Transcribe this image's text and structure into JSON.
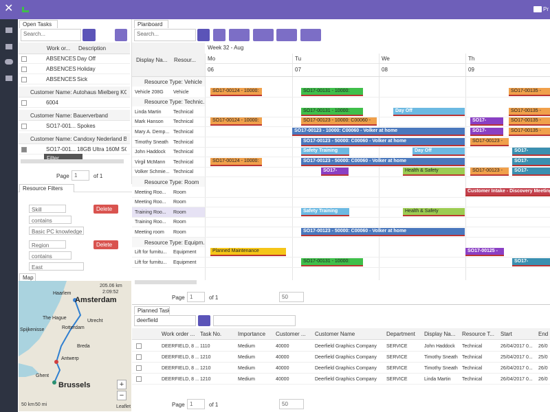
{
  "topbar": {
    "user": "Pr"
  },
  "open_tasks": {
    "tab": "Open Tasks",
    "search": "Search...",
    "columns": [
      "Work or...",
      "Description"
    ],
    "rows": [
      {
        "cells": [
          "ABSENCES",
          "Day Off"
        ]
      },
      {
        "cells": [
          "ABSENCES",
          "Holiday"
        ]
      },
      {
        "cells": [
          "ABSENCES",
          "Sick"
        ]
      },
      {
        "group": "Customer Name: Autohaus Mielberg KG"
      },
      {
        "cells": [
          "6004"
        ]
      },
      {
        "group": "Customer Name: Bauerverband"
      },
      {
        "cells": [
          "SO17-001...",
          "Spokes"
        ]
      },
      {
        "group": "Customer Name: Candoxy Nederland B..."
      },
      {
        "cells": [
          "SO17-001...",
          "18GB Ultra 160M SCS..."
        ]
      }
    ],
    "tooltip": "Filter",
    "pager": {
      "label": "Page",
      "page": "1",
      "of": "of 1"
    }
  },
  "resource_filters": {
    "title": "Resource Filters",
    "delete": "Delete",
    "filters": [
      {
        "field": "Skill",
        "op": "contains",
        "value": "Basic PC knowledge"
      },
      {
        "field": "Region",
        "op": "contains",
        "value": "East"
      }
    ]
  },
  "map": {
    "title": "Map",
    "distance": "205.06 km",
    "duration": "2:09:52",
    "scale_km": "50 km",
    "scale_mi": "50 mi",
    "attribution": "Leaflet",
    "zoom_in": "+",
    "zoom_out": "−",
    "cities": [
      "Amsterdam",
      "Haarlem",
      "The Hague",
      "Utrecht",
      "Rotterdam",
      "Breda",
      "Antwerp",
      "Ghent",
      "Brussels",
      "Spijkenisse"
    ]
  },
  "planboard": {
    "tab": "Planboard",
    "search": "Search...",
    "week": "Week 32 - Aug",
    "columns": [
      "Display Na...",
      "Resour..."
    ],
    "days": [
      {
        "name": "Mo",
        "num": "06"
      },
      {
        "name": "Tu",
        "num": "07"
      },
      {
        "name": "We",
        "num": "08"
      },
      {
        "name": "Th",
        "num": "09"
      }
    ],
    "rows": [
      {
        "group": "Resource Type: Vehicle"
      },
      {
        "name": "Vehicle 208G",
        "type": "Vehicle",
        "bars": [
          {
            "label": "SO17-00124 - 10000:",
            "color": "#f0a04b"
          },
          {
            "label": "SO17-00131 - 10000:",
            "color": "#3fbf4a"
          },
          {
            "label": "SO17-00135 -",
            "color": "#f0a04b"
          }
        ]
      },
      {
        "group": "Resource Type: Technic..."
      },
      {
        "name": "Linda Martin",
        "type": "Technical",
        "bars": [
          {
            "label": "SO17-00131 - 10000:",
            "color": "#3fbf4a"
          },
          {
            "label": "Day Off",
            "color": "#6cb9e2"
          },
          {
            "label": "SO17-00135 -",
            "color": "#f0a04b"
          }
        ]
      },
      {
        "name": "Mark Hanson",
        "type": "Technical",
        "bars": [
          {
            "label": "SO17-00124 - 10000:",
            "color": "#f0a04b"
          },
          {
            "label": "SO17-00123 - 10000: C00060 -",
            "color": "#f0a04b"
          },
          {
            "label": "SO17-",
            "color": "#8a3fc4"
          },
          {
            "label": "SO17-00135 -",
            "color": "#f0a04b"
          }
        ]
      },
      {
        "name": "Mary A. Demp...",
        "type": "Technical",
        "bars": [
          {
            "label": "SO17-00123 - 10000: C00060 - Volker at home",
            "color": "#4a78bd"
          },
          {
            "label": "SO17-",
            "color": "#8a3fc4"
          },
          {
            "label": "SO17-00135 -",
            "color": "#f0a04b"
          }
        ]
      },
      {
        "name": "Timothy Sneath",
        "type": "Technical",
        "bars": [
          {
            "label": "SO17-00123 - 50000: C00060 - Volker at home",
            "color": "#4a78bd"
          },
          {
            "label": "SO17-00123 -",
            "color": "#f0a04b"
          }
        ]
      },
      {
        "name": "John Haddock",
        "type": "Technical",
        "bars": [
          {
            "label": "Safety Training",
            "color": "#6cb9e2"
          },
          {
            "label": "Day Off",
            "color": "#6cb9e2"
          },
          {
            "label": "SO17-",
            "color": "#3a8fb0"
          }
        ]
      },
      {
        "name": "Virgil McMann",
        "type": "Technical",
        "bars": [
          {
            "label": "SO17-00124 - 10000:",
            "color": "#f0a04b"
          },
          {
            "label": "SO17-00123 - 50000: C00060 - Volker at home",
            "color": "#4a78bd"
          },
          {
            "label": "SO17-",
            "color": "#3a8fb0"
          }
        ]
      },
      {
        "name": "Volker Schmie...",
        "type": "Technical",
        "bars": [
          {
            "label": "SO17-",
            "color": "#8a3fc4"
          },
          {
            "label": "Health & Safety",
            "color": "#9ccc52"
          },
          {
            "label": "SO17-00123 -",
            "color": "#f0a04b"
          },
          {
            "label": "SO17-",
            "color": "#3a8fb0"
          }
        ]
      },
      {
        "group": "Resource Type: Room"
      },
      {
        "name": "Meeting Roo...",
        "type": "Room",
        "bars": [
          {
            "label": "Customer Intake - Discovery Meeting",
            "color": "#c2404c"
          }
        ]
      },
      {
        "name": "Meeting Roo...",
        "type": "Room",
        "bars": []
      },
      {
        "name": "Training Roo...",
        "type": "Room",
        "bars": [
          {
            "label": "Safety Training",
            "color": "#6cb9e2"
          },
          {
            "label": "Health & Safety",
            "color": "#9ccc52"
          }
        ]
      },
      {
        "name": "Training Roo...",
        "type": "Room",
        "bars": []
      },
      {
        "name": "Meeting room",
        "type": "Room",
        "bars": [
          {
            "label": "SO17-00123 - 50000: C00060 - Volker at home",
            "color": "#4a78bd"
          }
        ]
      },
      {
        "group": "Resource Type: Equipm..."
      },
      {
        "name": "Lift for furnitu...",
        "type": "Equipment",
        "bars": [
          {
            "label": "Planned Maintenance",
            "color": "#f5c518"
          },
          {
            "label": "SO17-00125 -",
            "color": "#8a3fc4"
          }
        ]
      },
      {
        "name": "Lift for furnitu...",
        "type": "Equipment",
        "bars": [
          {
            "label": "SO17-00131 - 10000:",
            "color": "#3fbf4a"
          },
          {
            "label": "SO17-",
            "color": "#3a8fb0"
          }
        ]
      }
    ],
    "pager": {
      "label": "Page",
      "page": "1",
      "of": "of 1",
      "size": "50"
    }
  },
  "planned_tasks": {
    "tab": "Planned Tasks",
    "search": "deerfield",
    "columns": [
      "Work order ...",
      "Task No.",
      "Importance",
      "Customer ...",
      "Customer Name",
      "Department",
      "Display Na...",
      "Resource T...",
      "Start",
      "End"
    ],
    "rows": [
      [
        "DEERFIELD, 8 ...",
        "1110",
        "Medium",
        "40000",
        "Deerfield Graphics Company",
        "SERVICE",
        "John Haddock",
        "Technical",
        "26/04/2017 0...",
        "26/0"
      ],
      [
        "DEERFIELD, 8 ...",
        "1210",
        "Medium",
        "40000",
        "Deerfield Graphics Company",
        "SERVICE",
        "Timothy Sneath",
        "Technical",
        "25/04/2017 0...",
        "25/0"
      ],
      [
        "DEERFIELD, 8 ...",
        "1210",
        "Medium",
        "40000",
        "Deerfield Graphics Company",
        "SERVICE",
        "Timothy Sneath",
        "Technical",
        "26/04/2017 0...",
        "26/0"
      ],
      [
        "DEERFIELD, 8 ...",
        "1210",
        "Medium",
        "40000",
        "Deerfield Graphics Company",
        "SERVICE",
        "Linda Martin",
        "Technical",
        "26/04/2017 0...",
        "26/0"
      ]
    ],
    "pager": {
      "label": "Page",
      "page": "1",
      "of": "of 1",
      "size": "50"
    }
  }
}
